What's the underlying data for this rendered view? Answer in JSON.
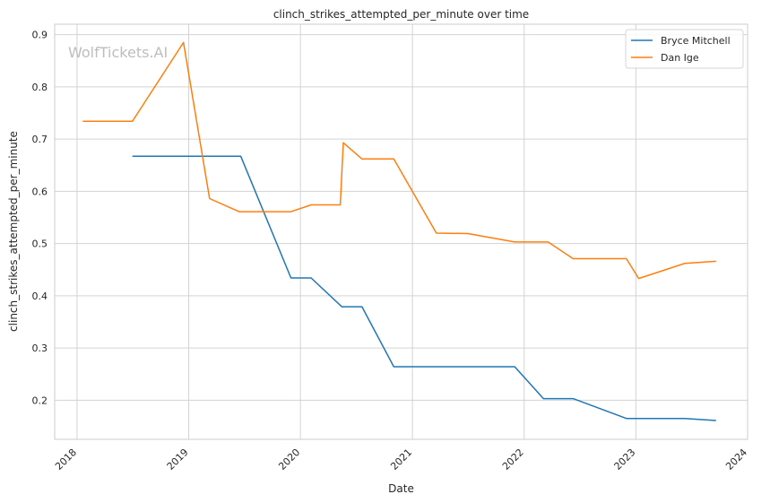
{
  "chart_data": {
    "type": "line",
    "title": "clinch_strikes_attempted_per_minute over time",
    "xlabel": "Date",
    "ylabel": "clinch_strikes_attempted_per_minute",
    "watermark": "WolfTickets.AI",
    "x_range": [
      "2017-10-20",
      "2024-01-01"
    ],
    "ylim": [
      0.125,
      0.92
    ],
    "x_ticks": [
      {
        "date": "2018-01-01",
        "label": "2018"
      },
      {
        "date": "2019-01-01",
        "label": "2019"
      },
      {
        "date": "2020-01-01",
        "label": "2020"
      },
      {
        "date": "2021-01-01",
        "label": "2021"
      },
      {
        "date": "2022-01-01",
        "label": "2022"
      },
      {
        "date": "2023-01-01",
        "label": "2023"
      },
      {
        "date": "2024-01-01",
        "label": "2024"
      }
    ],
    "y_ticks": [
      0.2,
      0.3,
      0.4,
      0.5,
      0.6,
      0.7,
      0.8,
      0.9
    ],
    "grid": true,
    "legend_position": "top-right",
    "series": [
      {
        "name": "Bryce Mitchell",
        "color": "#1f77b4",
        "points": [
          [
            "2018-07-01",
            0.667
          ],
          [
            "2019-06-20",
            0.667
          ],
          [
            "2019-12-01",
            0.434
          ],
          [
            "2020-02-05",
            0.434
          ],
          [
            "2020-05-15",
            0.379
          ],
          [
            "2020-07-20",
            0.379
          ],
          [
            "2020-11-01",
            0.264
          ],
          [
            "2021-12-01",
            0.264
          ],
          [
            "2022-03-05",
            0.203
          ],
          [
            "2022-06-10",
            0.203
          ],
          [
            "2022-12-01",
            0.165
          ],
          [
            "2023-06-10",
            0.165
          ],
          [
            "2023-09-20",
            0.161
          ]
        ]
      },
      {
        "name": "Dan Ige",
        "color": "#ff7f0e",
        "points": [
          [
            "2018-01-20",
            0.734
          ],
          [
            "2018-07-01",
            0.734
          ],
          [
            "2018-12-15",
            0.885
          ],
          [
            "2019-03-10",
            0.586
          ],
          [
            "2019-06-15",
            0.561
          ],
          [
            "2019-12-01",
            0.561
          ],
          [
            "2020-02-05",
            0.574
          ],
          [
            "2020-05-10",
            0.574
          ],
          [
            "2020-05-20",
            0.693
          ],
          [
            "2020-07-20",
            0.662
          ],
          [
            "2020-11-01",
            0.662
          ],
          [
            "2021-03-20",
            0.52
          ],
          [
            "2021-07-01",
            0.519
          ],
          [
            "2021-12-01",
            0.503
          ],
          [
            "2022-03-20",
            0.503
          ],
          [
            "2022-06-10",
            0.471
          ],
          [
            "2022-12-01",
            0.471
          ],
          [
            "2023-01-10",
            0.433
          ],
          [
            "2023-06-10",
            0.462
          ],
          [
            "2023-09-20",
            0.466
          ]
        ]
      }
    ]
  }
}
